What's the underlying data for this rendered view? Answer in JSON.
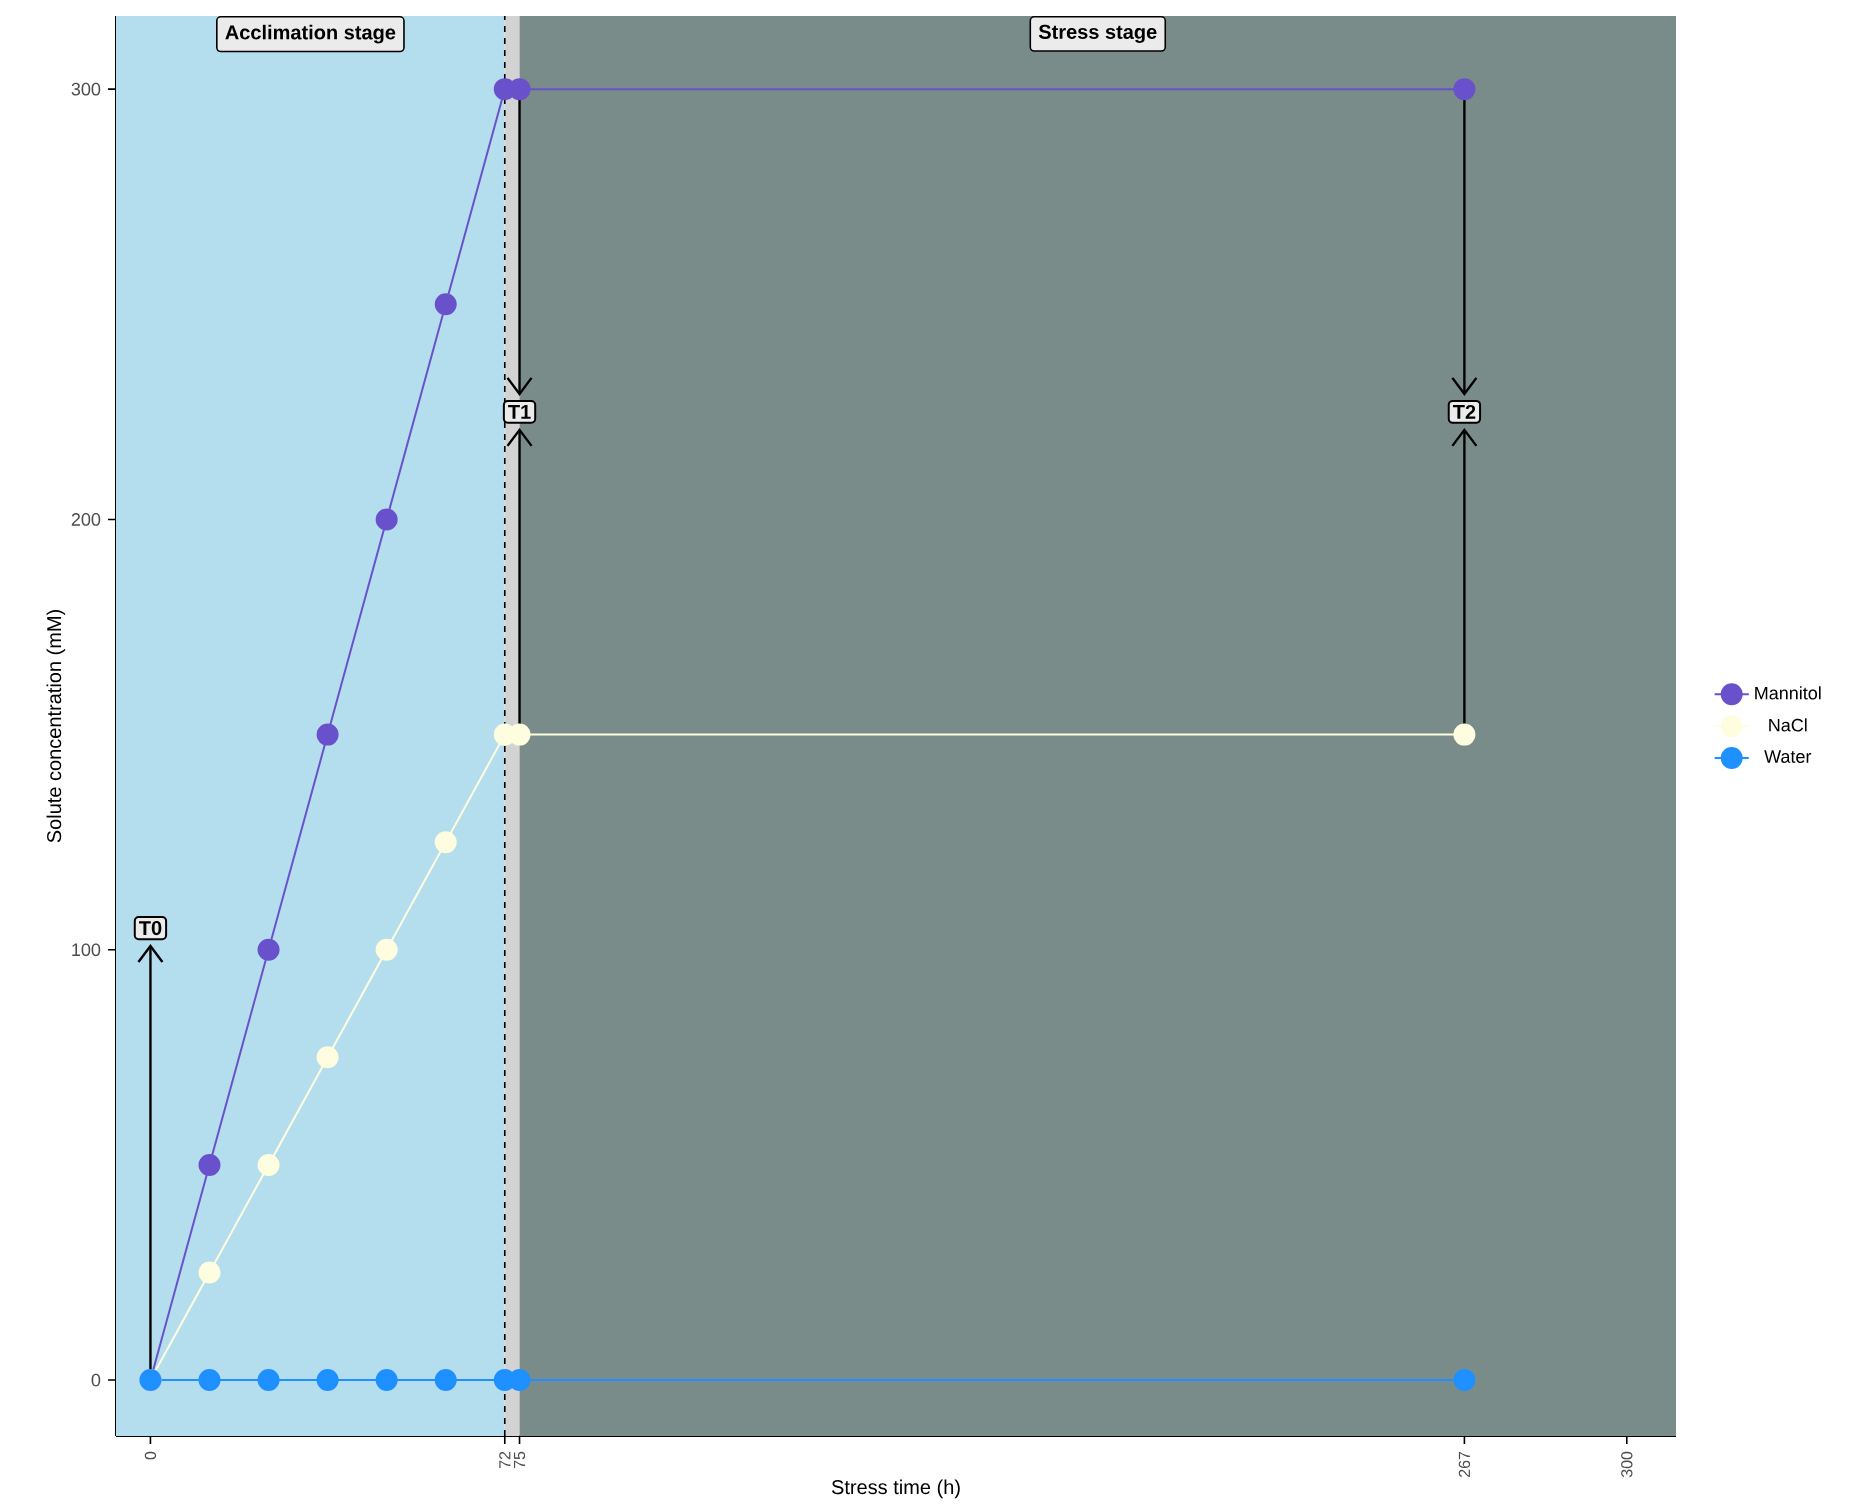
{
  "chart_data": {
    "type": "line",
    "xlabel": "Stress time (h)",
    "ylabel": "Solute concentration (mM)",
    "x": [
      0,
      12,
      24,
      36,
      48,
      60,
      72,
      75,
      267
    ],
    "series": [
      {
        "name": "Mannitol",
        "color": "#6a51cc",
        "values": [
          0,
          50,
          100,
          150,
          200,
          250,
          300,
          300,
          300
        ]
      },
      {
        "name": "NaCl",
        "color": "#fffde0",
        "values": [
          0,
          25,
          50,
          75,
          100,
          125,
          150,
          150,
          150
        ]
      },
      {
        "name": "Water",
        "color": "#1e90ff",
        "values": [
          0,
          0,
          0,
          0,
          0,
          0,
          0,
          0,
          0
        ]
      }
    ],
    "xlim": [
      -7,
      310
    ],
    "xticks": [
      0,
      72,
      75,
      267,
      300
    ],
    "ylim": [
      -13,
      317
    ],
    "yticks": [
      0,
      100,
      200,
      300
    ],
    "bands": [
      {
        "axis": "x",
        "from": -7,
        "to": 72,
        "label": "Acclimation stage",
        "color": "#b4deed"
      },
      {
        "axis": "x",
        "from": 72,
        "to": 75,
        "color": "#d3d3d3"
      },
      {
        "axis": "x",
        "from": 75,
        "to": 310,
        "label": "Stress stage",
        "color": "#7a8c89"
      }
    ],
    "ref_lines": [
      {
        "axis": "x",
        "value": 72,
        "color": "#000000",
        "line_style": "dashed"
      }
    ],
    "annotations": [
      {
        "text": "T0",
        "x": 0,
        "y": 0
      },
      {
        "text": "T1",
        "x": 75,
        "y": 150
      },
      {
        "text": "T2",
        "x": 267,
        "y": 150
      }
    ],
    "marker": "circle",
    "line_style": "solid",
    "grid": false,
    "legend": "right"
  }
}
